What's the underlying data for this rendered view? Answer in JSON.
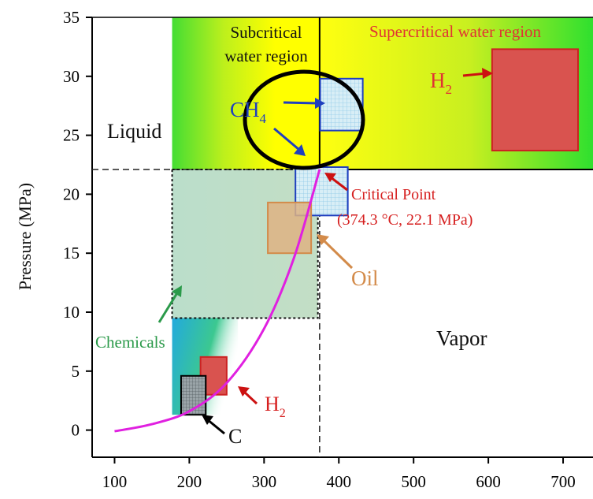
{
  "chart_data": {
    "type": "phase-diagram",
    "xlabel": "",
    "ylabel": "Pressure (MPa)",
    "xlim": [
      70,
      740
    ],
    "ylim": [
      -2.3,
      35
    ],
    "x_ticks": [
      100,
      200,
      300,
      400,
      500,
      600,
      700
    ],
    "y_ticks": [
      0,
      5,
      10,
      15,
      20,
      25,
      30,
      35
    ],
    "critical_point": {
      "temperature": 374.3,
      "pressure": 22.1
    },
    "saturation_curve": [
      {
        "x": 100,
        "y": -0.1
      },
      {
        "x": 150,
        "y": 0.5
      },
      {
        "x": 200,
        "y": 1.6
      },
      {
        "x": 250,
        "y": 4.0
      },
      {
        "x": 300,
        "y": 8.6
      },
      {
        "x": 340,
        "y": 14.6
      },
      {
        "x": 374.3,
        "y": 22.1
      }
    ],
    "regions": [
      {
        "id": "supercritical",
        "label": "Supercritical water region",
        "x": [
          374.3,
          740
        ],
        "y": [
          22.1,
          35
        ]
      },
      {
        "id": "subcritical",
        "label_lines": [
          "Subcritical",
          "water region"
        ],
        "x": [
          177,
          374.3
        ],
        "y": [
          22.1,
          35
        ]
      },
      {
        "id": "chemicals-box",
        "x": [
          177,
          372
        ],
        "y": [
          9.5,
          22.1
        ]
      },
      {
        "id": "lower-gradient",
        "x": [
          177,
          265
        ],
        "y": [
          1.3,
          9.5
        ]
      }
    ],
    "products": [
      {
        "id": "h2-high",
        "label": "H",
        "subscript": "2",
        "color": "#d9534f",
        "x": [
          605,
          720
        ],
        "y": [
          23.7,
          32.3
        ]
      },
      {
        "id": "ch4-upper",
        "label": "CH",
        "subscript": "4",
        "color": "#2233aa",
        "x": [
          375,
          432
        ],
        "y": [
          25.4,
          29.8
        ]
      },
      {
        "id": "ch4-lower",
        "x": [
          342,
          412
        ],
        "y": [
          18.2,
          22.3
        ]
      },
      {
        "id": "oil",
        "label": "Oil",
        "color": "#d38b4a",
        "x": [
          305,
          363
        ],
        "y": [
          15.0,
          19.3
        ]
      },
      {
        "id": "h2-low",
        "label": "H",
        "subscript": "2",
        "color": "#d62020",
        "x": [
          215,
          250
        ],
        "y": [
          3.0,
          6.2
        ]
      },
      {
        "id": "carbon",
        "label": "C",
        "color": "#111111",
        "x": [
          189,
          222
        ],
        "y": [
          1.3,
          4.6
        ]
      }
    ],
    "text_labels": {
      "liquid": "Liquid",
      "vapor": "Vapor",
      "chemicals": "Chemicals",
      "critical_point_title": "Critical Point",
      "critical_point_value": "(374.3 °C, 22.1 MPa)"
    },
    "colors": {
      "curve": "#e020e0",
      "green": "#22dd22",
      "yellow": "#ffff00",
      "teal": "#2bbfbf",
      "h2": "#d9534f",
      "ch4": "#1f3fbf",
      "oil": "#d38b4a",
      "chemicals": "#2b9a4a",
      "critical": "#d62020"
    }
  }
}
